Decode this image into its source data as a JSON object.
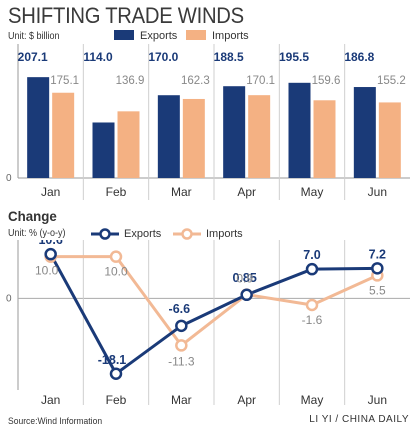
{
  "title": "SHIFTING TRADE WINDS",
  "colors": {
    "exports": "#1a3a78",
    "imports": "#f4b183",
    "imports_line": "#f2b995"
  },
  "chart_data": [
    {
      "type": "bar",
      "unit": "Unit: $ billion",
      "categories": [
        "Jan",
        "Feb",
        "Mar",
        "Apr",
        "May",
        "Jun"
      ],
      "series": [
        {
          "name": "Exports",
          "values": [
            207.1,
            114.0,
            170.0,
            188.5,
            195.5,
            186.8
          ],
          "labels": [
            "207.1",
            "114.0",
            "170.0",
            "188.5",
            "195.5",
            "186.8"
          ]
        },
        {
          "name": "Imports",
          "values": [
            175.1,
            136.9,
            162.3,
            170.1,
            159.6,
            155.2
          ],
          "labels": [
            "175.1",
            "136.9",
            "162.3",
            "170.1",
            "159.6",
            "155.2"
          ]
        }
      ],
      "ylim": [
        0,
        230
      ],
      "axis_zero_label": "0"
    },
    {
      "type": "line",
      "title": "Change",
      "unit": "Unit: % (y-o-y)",
      "categories": [
        "Jan",
        "Feb",
        "Mar",
        "Apr",
        "May",
        "Jun"
      ],
      "series": [
        {
          "name": "Exports",
          "values": [
            10.6,
            -18.1,
            -6.6,
            0.85,
            7.0,
            7.2
          ],
          "labels": [
            "10.6",
            "-18.1",
            "-6.6",
            "0.85",
            "7.0",
            "7.2"
          ]
        },
        {
          "name": "Imports",
          "values": [
            10.0,
            10.0,
            -11.3,
            0.9,
            -1.6,
            5.5
          ],
          "labels": [
            "10.0",
            "10.0",
            "-11.3",
            "0.9",
            "-1.6",
            "5.5"
          ]
        }
      ],
      "ylim": [
        -22,
        14
      ],
      "axis_zero_label": "0"
    }
  ],
  "source": "Source:Wind Information",
  "credit": "LI YI / CHINA DAILY"
}
